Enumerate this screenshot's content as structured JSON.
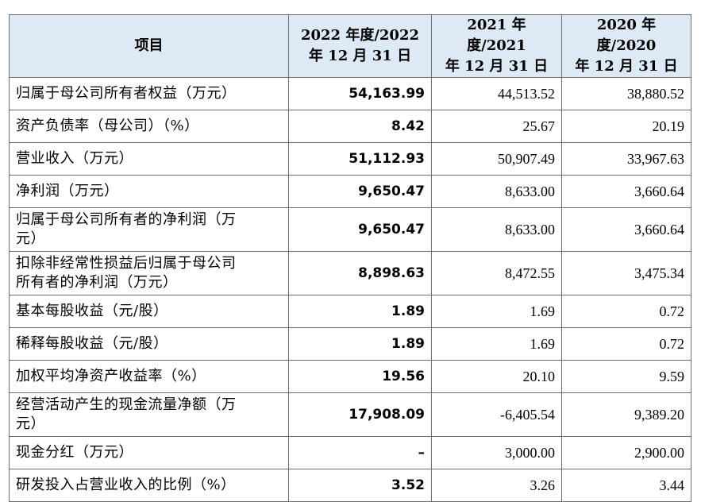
{
  "header": {
    "item": "项目",
    "col_2022_line1": "2022 年度/2022",
    "col_2022_line2": "年 12 月 31 日",
    "col_2021_line1": "2021 年度/2021",
    "col_2021_line2": "年 12 月 31 日",
    "col_2020_line1": "2020 年度/2020",
    "col_2020_line2": "年 12 月 31 日"
  },
  "rows": [
    {
      "label": "归属于母公司所有者权益（万元）",
      "v2022": "54,163.99",
      "v2021": "44,513.52",
      "v2020": "38,880.52"
    },
    {
      "label": "资产负债率（母公司）（%）",
      "v2022": "8.42",
      "v2021": "25.67",
      "v2020": "20.19"
    },
    {
      "label": "营业收入（万元）",
      "v2022": "51,112.93",
      "v2021": "50,907.49",
      "v2020": "33,967.63"
    },
    {
      "label": "净利润（万元）",
      "v2022": "9,650.47",
      "v2021": "8,633.00",
      "v2020": "3,660.64"
    },
    {
      "label_line1": "归属于母公司所有者的净利润（万",
      "label_line2": "元）",
      "v2022": "9,650.47",
      "v2021": "8,633.00",
      "v2020": "3,660.64"
    },
    {
      "label_line1": "扣除非经常性损益后归属于母公司",
      "label_line2": "所有者的净利润（万元）",
      "v2022": "8,898.63",
      "v2021": "8,472.55",
      "v2020": "3,475.34"
    },
    {
      "label": "基本每股收益（元/股）",
      "v2022": "1.89",
      "v2021": "1.69",
      "v2020": "0.72"
    },
    {
      "label": "稀释每股收益（元/股）",
      "v2022": "1.89",
      "v2021": "1.69",
      "v2020": "0.72"
    },
    {
      "label": "加权平均净资产收益率（%）",
      "v2022": "19.56",
      "v2021": "20.10",
      "v2020": "9.59"
    },
    {
      "label_line1": "经营活动产生的现金流量净额（万",
      "label_line2": "元）",
      "v2022": "17,908.09",
      "v2021": "-6,405.54",
      "v2020": "9,389.20"
    },
    {
      "label": "现金分红（万元）",
      "v2022": "–",
      "v2021": "3,000.00",
      "v2020": "2,900.00"
    },
    {
      "label": "研发投入占营业收入的比例（%）",
      "v2022": "3.52",
      "v2021": "3.26",
      "v2020": "3.44"
    }
  ]
}
